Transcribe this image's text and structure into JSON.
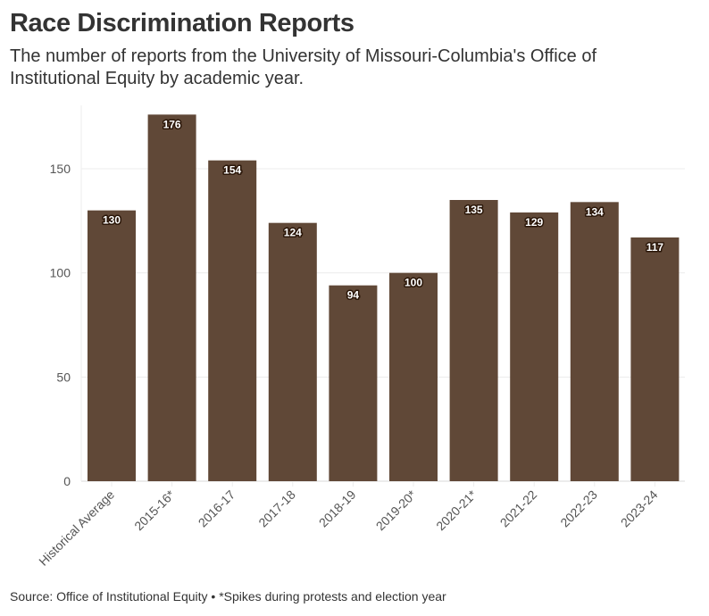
{
  "header": {
    "title": "Race Discrimination Reports",
    "subtitle": "The number of reports from the University of Missouri-Columbia's Office of Institutional Equity by academic year."
  },
  "footer": {
    "source": "Source: Office of Institutional Equity • *Spikes during protests and election year"
  },
  "colors": {
    "bar": "#604837",
    "grid": "#ececec",
    "text": "#333333"
  },
  "chart_data": {
    "type": "bar",
    "title": "Race Discrimination Reports",
    "subtitle": "The number of reports from the University of Missouri-Columbia's Office of Institutional Equity by academic year.",
    "xlabel": "",
    "ylabel": "",
    "categories": [
      "Historical Average",
      "2015-16*",
      "2016-17",
      "2017-18",
      "2018-19",
      "2019-20*",
      "2020-21*",
      "2021-22",
      "2022-23",
      "2023-24"
    ],
    "values": [
      130,
      176,
      154,
      124,
      94,
      100,
      135,
      129,
      134,
      117
    ],
    "data_labels": [
      "130",
      "176",
      "154",
      "124",
      "94",
      "100",
      "135",
      "129",
      "134",
      "117"
    ],
    "yticks": [
      0,
      50,
      100,
      150
    ],
    "ytick_labels": [
      "0",
      "50",
      "100",
      "150"
    ],
    "ylim": [
      0,
      180
    ],
    "grid": true,
    "legend": "none",
    "x_tick_rotation_deg": -45
  }
}
